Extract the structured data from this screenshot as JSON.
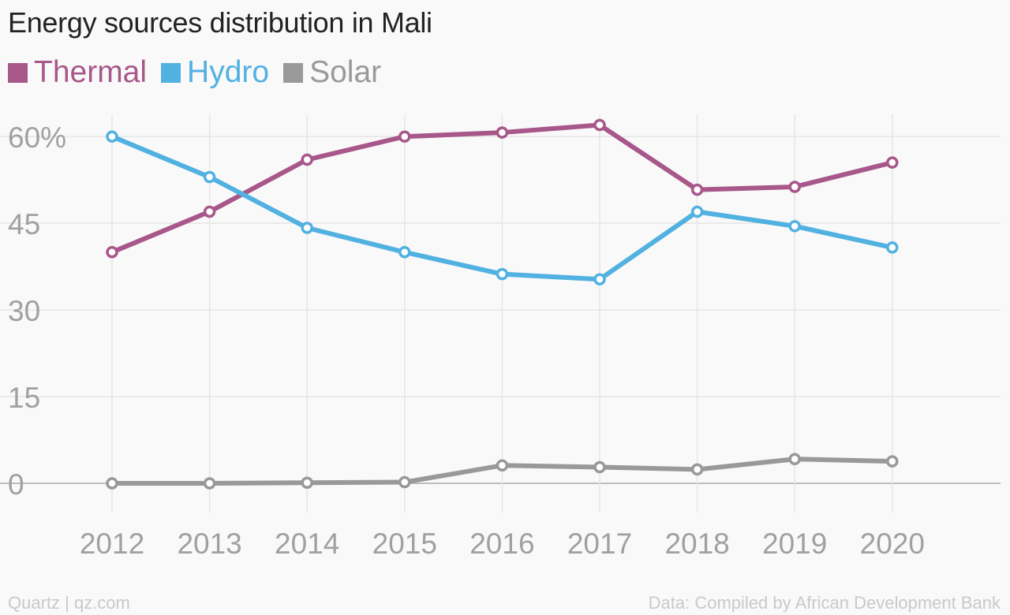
{
  "title": "Energy sources distribution in Mali",
  "footer": {
    "left": "Quartz | qz.com",
    "right": "Data: Compiled by African Development Bank"
  },
  "chart_data": {
    "type": "line",
    "title": "Energy sources distribution in Mali",
    "xlabel": "",
    "ylabel": "",
    "x": [
      2012,
      2013,
      2014,
      2015,
      2016,
      2017,
      2018,
      2019,
      2020
    ],
    "x_tick_labels": [
      "2012",
      "2013",
      "2014",
      "2015",
      "2016",
      "2017",
      "2018",
      "2019",
      "2020"
    ],
    "ylim": [
      -5,
      63
    ],
    "y_ticks": [
      0,
      15,
      30,
      45,
      60
    ],
    "y_tick_labels": [
      "0",
      "15",
      "30",
      "45",
      "60%"
    ],
    "grid": true,
    "legend_position": "top-left",
    "series": [
      {
        "name": "Thermal",
        "color": "#a8578a",
        "values": [
          40,
          47,
          56,
          60,
          60.7,
          62,
          50.8,
          51.3,
          55.5
        ]
      },
      {
        "name": "Hydro",
        "color": "#51b1e1",
        "values": [
          60,
          53,
          44.2,
          40,
          36.2,
          35.3,
          47,
          44.5,
          40.8
        ]
      },
      {
        "name": "Solar",
        "color": "#999999",
        "values": [
          0,
          0,
          0.1,
          0.2,
          3.1,
          2.8,
          2.4,
          4.2,
          3.8
        ]
      }
    ]
  }
}
